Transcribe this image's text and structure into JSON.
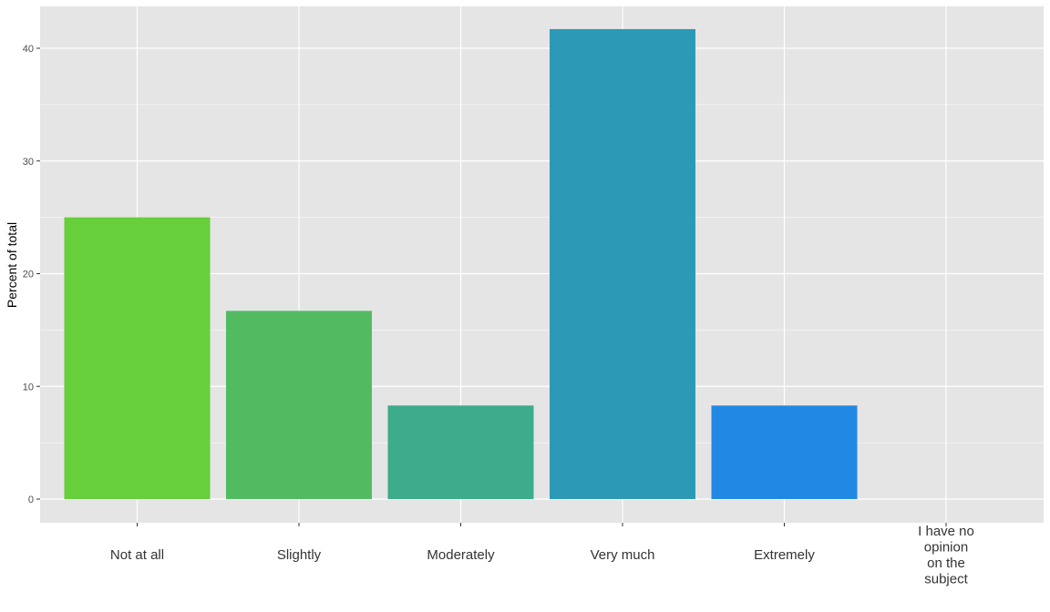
{
  "chart_data": {
    "type": "bar",
    "categories": [
      [
        "Not at all"
      ],
      [
        "Slightly"
      ],
      [
        "Moderately"
      ],
      [
        "Very much"
      ],
      [
        "Extremely"
      ],
      [
        "I have no",
        "opinion",
        "on the",
        "subject"
      ]
    ],
    "values": [
      25.0,
      16.7,
      8.3,
      41.7,
      8.3,
      0
    ],
    "colors": [
      "#67ce3c",
      "#52bb62",
      "#3dac8a",
      "#2c9ab7",
      "#2189e3",
      "#1f7fe8"
    ],
    "xlabel": "",
    "ylabel": "Percent of total",
    "yticks": [
      0,
      10,
      20,
      30,
      40
    ],
    "ylim": [
      -2.1,
      43.8
    ],
    "grid": true,
    "panel_background": "#e5e5e5",
    "grid_color": "#ffffff",
    "legend": "none"
  }
}
